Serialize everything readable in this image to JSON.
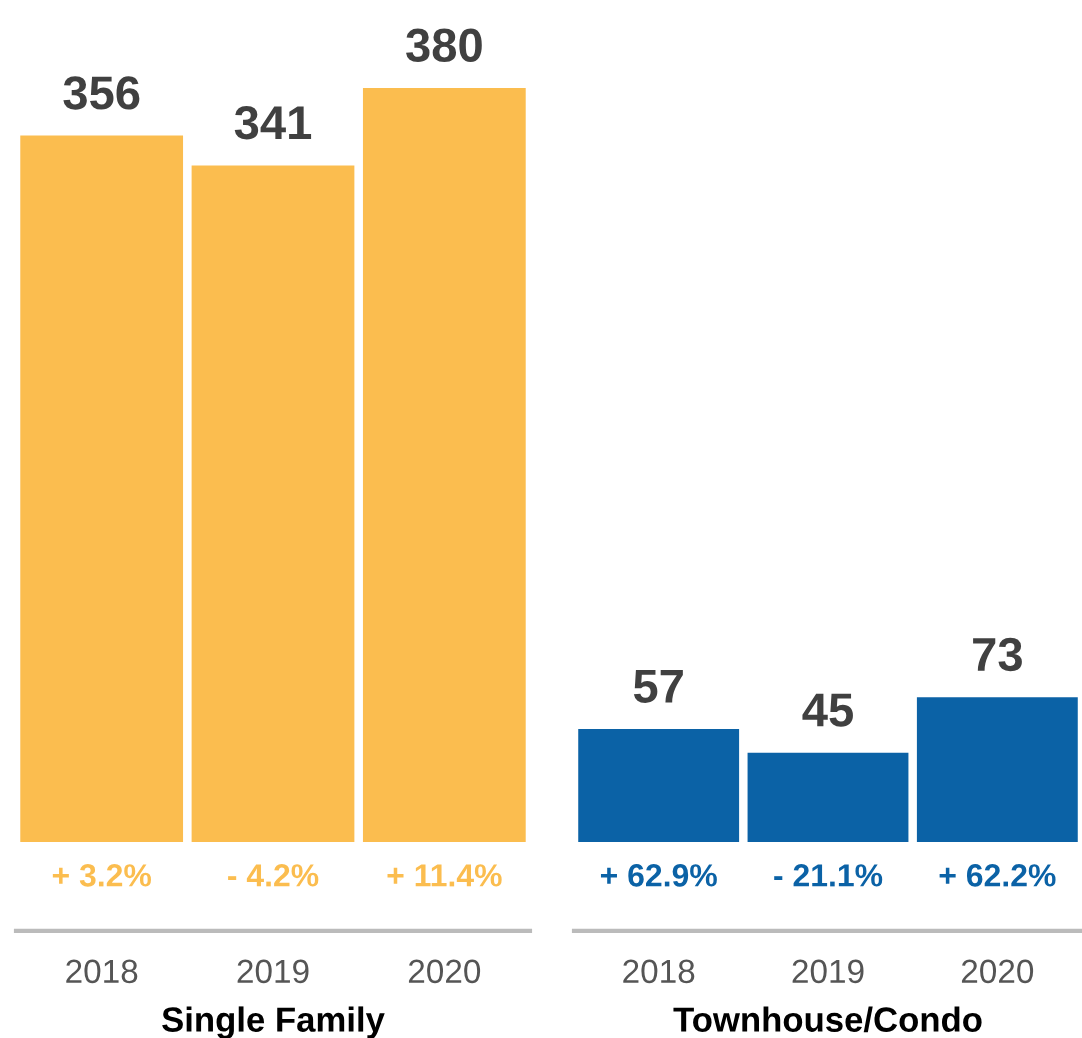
{
  "chart_data": [
    {
      "type": "bar",
      "categories": [
        "2018",
        "2019",
        "2020"
      ],
      "values": [
        356,
        341,
        380
      ],
      "color": "#fbbd4f",
      "data_labels": true,
      "xlabel": "Single Family",
      "tick_labels": "x",
      "annotations": [
        "+ 3.2%",
        "- 4.2%",
        "+ 11.4%"
      ]
    },
    {
      "type": "bar",
      "categories": [
        "2018",
        "2019",
        "2020"
      ],
      "values": [
        57,
        45,
        73
      ],
      "color": "#0b62a6",
      "data_labels": true,
      "xlabel": "Townhouse/Condo",
      "tick_labels": "x",
      "annotations": [
        "+ 62.9%",
        "- 21.1%",
        "+ 62.2%"
      ]
    }
  ]
}
